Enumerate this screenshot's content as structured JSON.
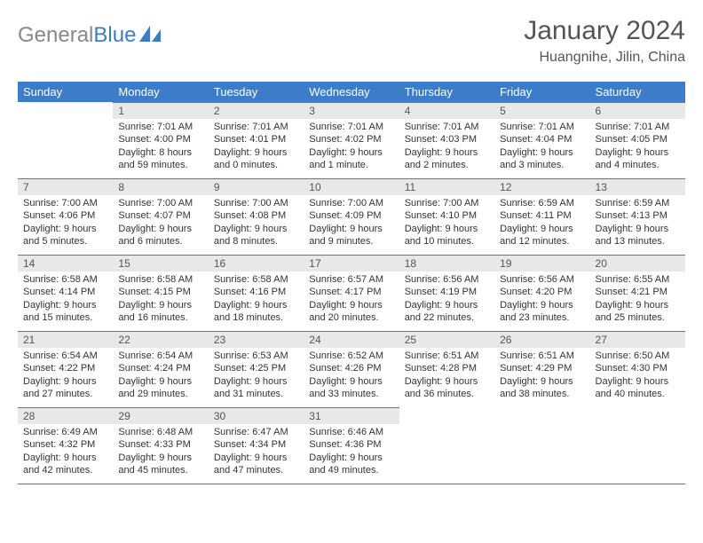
{
  "logo": {
    "text1": "General",
    "text2": "Blue"
  },
  "title": "January 2024",
  "location": "Huangnihe, Jilin, China",
  "colors": {
    "header_bg": "#3d7cc9",
    "header_text": "#ffffff",
    "daynum_bg": "#e8e8e8",
    "rule": "#3d7cc9",
    "body_bg": "#ffffff",
    "logo_gray": "#888888",
    "logo_blue": "#3d7cc9"
  },
  "weekdays": [
    "Sunday",
    "Monday",
    "Tuesday",
    "Wednesday",
    "Thursday",
    "Friday",
    "Saturday"
  ],
  "weeks": [
    [
      null,
      {
        "n": "1",
        "sr": "Sunrise: 7:01 AM",
        "ss": "Sunset: 4:00 PM",
        "dl": "Daylight: 8 hours and 59 minutes."
      },
      {
        "n": "2",
        "sr": "Sunrise: 7:01 AM",
        "ss": "Sunset: 4:01 PM",
        "dl": "Daylight: 9 hours and 0 minutes."
      },
      {
        "n": "3",
        "sr": "Sunrise: 7:01 AM",
        "ss": "Sunset: 4:02 PM",
        "dl": "Daylight: 9 hours and 1 minute."
      },
      {
        "n": "4",
        "sr": "Sunrise: 7:01 AM",
        "ss": "Sunset: 4:03 PM",
        "dl": "Daylight: 9 hours and 2 minutes."
      },
      {
        "n": "5",
        "sr": "Sunrise: 7:01 AM",
        "ss": "Sunset: 4:04 PM",
        "dl": "Daylight: 9 hours and 3 minutes."
      },
      {
        "n": "6",
        "sr": "Sunrise: 7:01 AM",
        "ss": "Sunset: 4:05 PM",
        "dl": "Daylight: 9 hours and 4 minutes."
      }
    ],
    [
      {
        "n": "7",
        "sr": "Sunrise: 7:00 AM",
        "ss": "Sunset: 4:06 PM",
        "dl": "Daylight: 9 hours and 5 minutes."
      },
      {
        "n": "8",
        "sr": "Sunrise: 7:00 AM",
        "ss": "Sunset: 4:07 PM",
        "dl": "Daylight: 9 hours and 6 minutes."
      },
      {
        "n": "9",
        "sr": "Sunrise: 7:00 AM",
        "ss": "Sunset: 4:08 PM",
        "dl": "Daylight: 9 hours and 8 minutes."
      },
      {
        "n": "10",
        "sr": "Sunrise: 7:00 AM",
        "ss": "Sunset: 4:09 PM",
        "dl": "Daylight: 9 hours and 9 minutes."
      },
      {
        "n": "11",
        "sr": "Sunrise: 7:00 AM",
        "ss": "Sunset: 4:10 PM",
        "dl": "Daylight: 9 hours and 10 minutes."
      },
      {
        "n": "12",
        "sr": "Sunrise: 6:59 AM",
        "ss": "Sunset: 4:11 PM",
        "dl": "Daylight: 9 hours and 12 minutes."
      },
      {
        "n": "13",
        "sr": "Sunrise: 6:59 AM",
        "ss": "Sunset: 4:13 PM",
        "dl": "Daylight: 9 hours and 13 minutes."
      }
    ],
    [
      {
        "n": "14",
        "sr": "Sunrise: 6:58 AM",
        "ss": "Sunset: 4:14 PM",
        "dl": "Daylight: 9 hours and 15 minutes."
      },
      {
        "n": "15",
        "sr": "Sunrise: 6:58 AM",
        "ss": "Sunset: 4:15 PM",
        "dl": "Daylight: 9 hours and 16 minutes."
      },
      {
        "n": "16",
        "sr": "Sunrise: 6:58 AM",
        "ss": "Sunset: 4:16 PM",
        "dl": "Daylight: 9 hours and 18 minutes."
      },
      {
        "n": "17",
        "sr": "Sunrise: 6:57 AM",
        "ss": "Sunset: 4:17 PM",
        "dl": "Daylight: 9 hours and 20 minutes."
      },
      {
        "n": "18",
        "sr": "Sunrise: 6:56 AM",
        "ss": "Sunset: 4:19 PM",
        "dl": "Daylight: 9 hours and 22 minutes."
      },
      {
        "n": "19",
        "sr": "Sunrise: 6:56 AM",
        "ss": "Sunset: 4:20 PM",
        "dl": "Daylight: 9 hours and 23 minutes."
      },
      {
        "n": "20",
        "sr": "Sunrise: 6:55 AM",
        "ss": "Sunset: 4:21 PM",
        "dl": "Daylight: 9 hours and 25 minutes."
      }
    ],
    [
      {
        "n": "21",
        "sr": "Sunrise: 6:54 AM",
        "ss": "Sunset: 4:22 PM",
        "dl": "Daylight: 9 hours and 27 minutes."
      },
      {
        "n": "22",
        "sr": "Sunrise: 6:54 AM",
        "ss": "Sunset: 4:24 PM",
        "dl": "Daylight: 9 hours and 29 minutes."
      },
      {
        "n": "23",
        "sr": "Sunrise: 6:53 AM",
        "ss": "Sunset: 4:25 PM",
        "dl": "Daylight: 9 hours and 31 minutes."
      },
      {
        "n": "24",
        "sr": "Sunrise: 6:52 AM",
        "ss": "Sunset: 4:26 PM",
        "dl": "Daylight: 9 hours and 33 minutes."
      },
      {
        "n": "25",
        "sr": "Sunrise: 6:51 AM",
        "ss": "Sunset: 4:28 PM",
        "dl": "Daylight: 9 hours and 36 minutes."
      },
      {
        "n": "26",
        "sr": "Sunrise: 6:51 AM",
        "ss": "Sunset: 4:29 PM",
        "dl": "Daylight: 9 hours and 38 minutes."
      },
      {
        "n": "27",
        "sr": "Sunrise: 6:50 AM",
        "ss": "Sunset: 4:30 PM",
        "dl": "Daylight: 9 hours and 40 minutes."
      }
    ],
    [
      {
        "n": "28",
        "sr": "Sunrise: 6:49 AM",
        "ss": "Sunset: 4:32 PM",
        "dl": "Daylight: 9 hours and 42 minutes."
      },
      {
        "n": "29",
        "sr": "Sunrise: 6:48 AM",
        "ss": "Sunset: 4:33 PM",
        "dl": "Daylight: 9 hours and 45 minutes."
      },
      {
        "n": "30",
        "sr": "Sunrise: 6:47 AM",
        "ss": "Sunset: 4:34 PM",
        "dl": "Daylight: 9 hours and 47 minutes."
      },
      {
        "n": "31",
        "sr": "Sunrise: 6:46 AM",
        "ss": "Sunset: 4:36 PM",
        "dl": "Daylight: 9 hours and 49 minutes."
      },
      null,
      null,
      null
    ]
  ]
}
